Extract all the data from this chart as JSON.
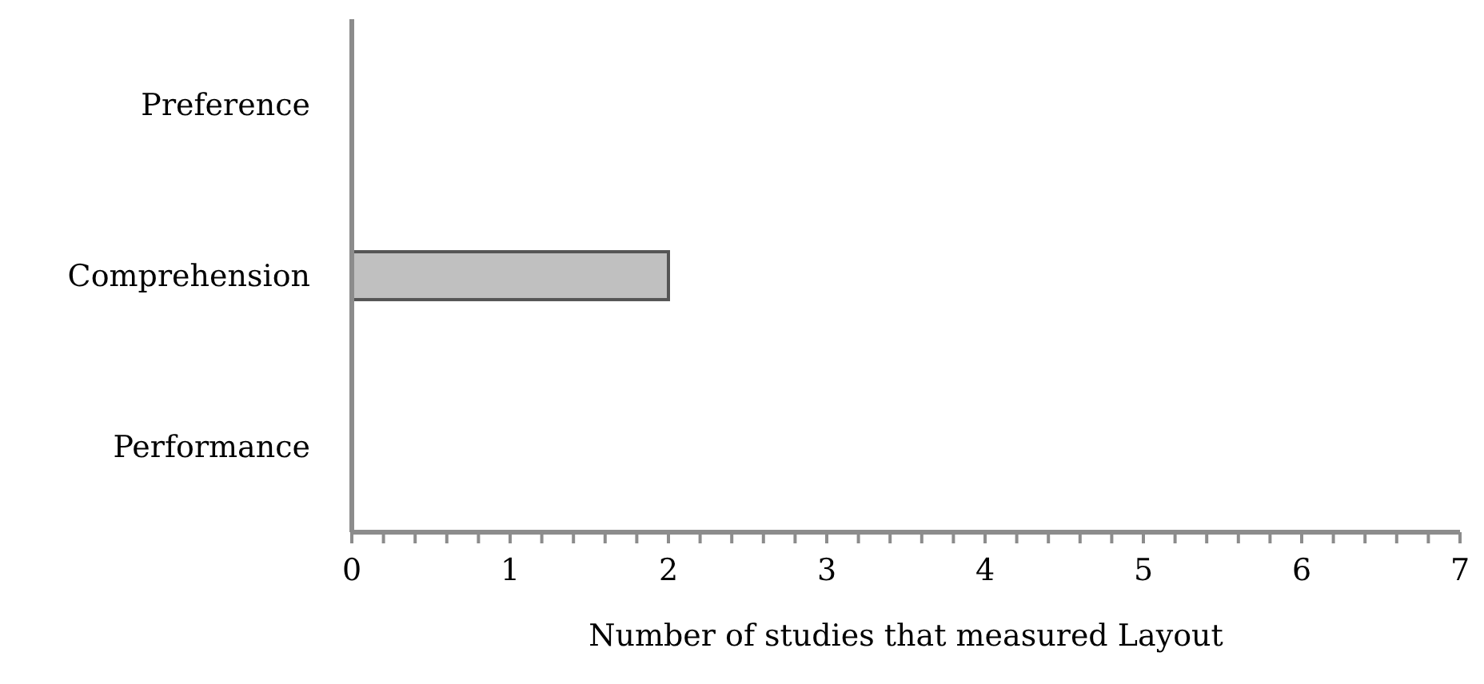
{
  "chart_data": {
    "type": "bar",
    "orientation": "horizontal",
    "xlabel": "Number of studies that measured Layout",
    "categories": [
      "Preference",
      "Comprehension",
      "Performance"
    ],
    "values": [
      0,
      2,
      0
    ],
    "color": "#c0c0c0",
    "xlim": [
      0,
      7
    ],
    "xticks": [
      0,
      {
        "value": 0.2,
        "label": null
      },
      {
        "value": 0.4,
        "label": null
      },
      {
        "value": 0.6,
        "label": null
      },
      {
        "value": 0.8,
        "label": null
      },
      1,
      {
        "value": 1.2,
        "label": null
      },
      {
        "value": 1.4,
        "label": null
      },
      {
        "value": 1.6,
        "label": null
      },
      {
        "value": 1.8,
        "label": null
      },
      2,
      {
        "value": 2.2,
        "label": null
      },
      {
        "value": 2.4,
        "label": null
      },
      {
        "value": 2.6,
        "label": null
      },
      {
        "value": 2.8,
        "label": null
      },
      3,
      {
        "value": 3.2,
        "label": null
      },
      {
        "value": 3.4,
        "label": null
      },
      {
        "value": 3.6,
        "label": null
      },
      {
        "value": 3.8,
        "label": null
      },
      4,
      {
        "value": 4.2,
        "label": null
      },
      {
        "value": 4.4,
        "label": null
      },
      {
        "value": 4.6,
        "label": null
      },
      {
        "value": 4.8,
        "label": null
      },
      5,
      {
        "value": 5.2,
        "label": null
      },
      {
        "value": 5.4,
        "label": null
      },
      {
        "value": 5.6,
        "label": null
      },
      {
        "value": 5.8,
        "label": null
      },
      6,
      {
        "value": 6.2,
        "label": null
      },
      {
        "value": 6.4,
        "label": null
      },
      {
        "value": 6.6,
        "label": null
      },
      {
        "value": 6.8,
        "label": null
      },
      7
    ],
    "grid": false
  }
}
